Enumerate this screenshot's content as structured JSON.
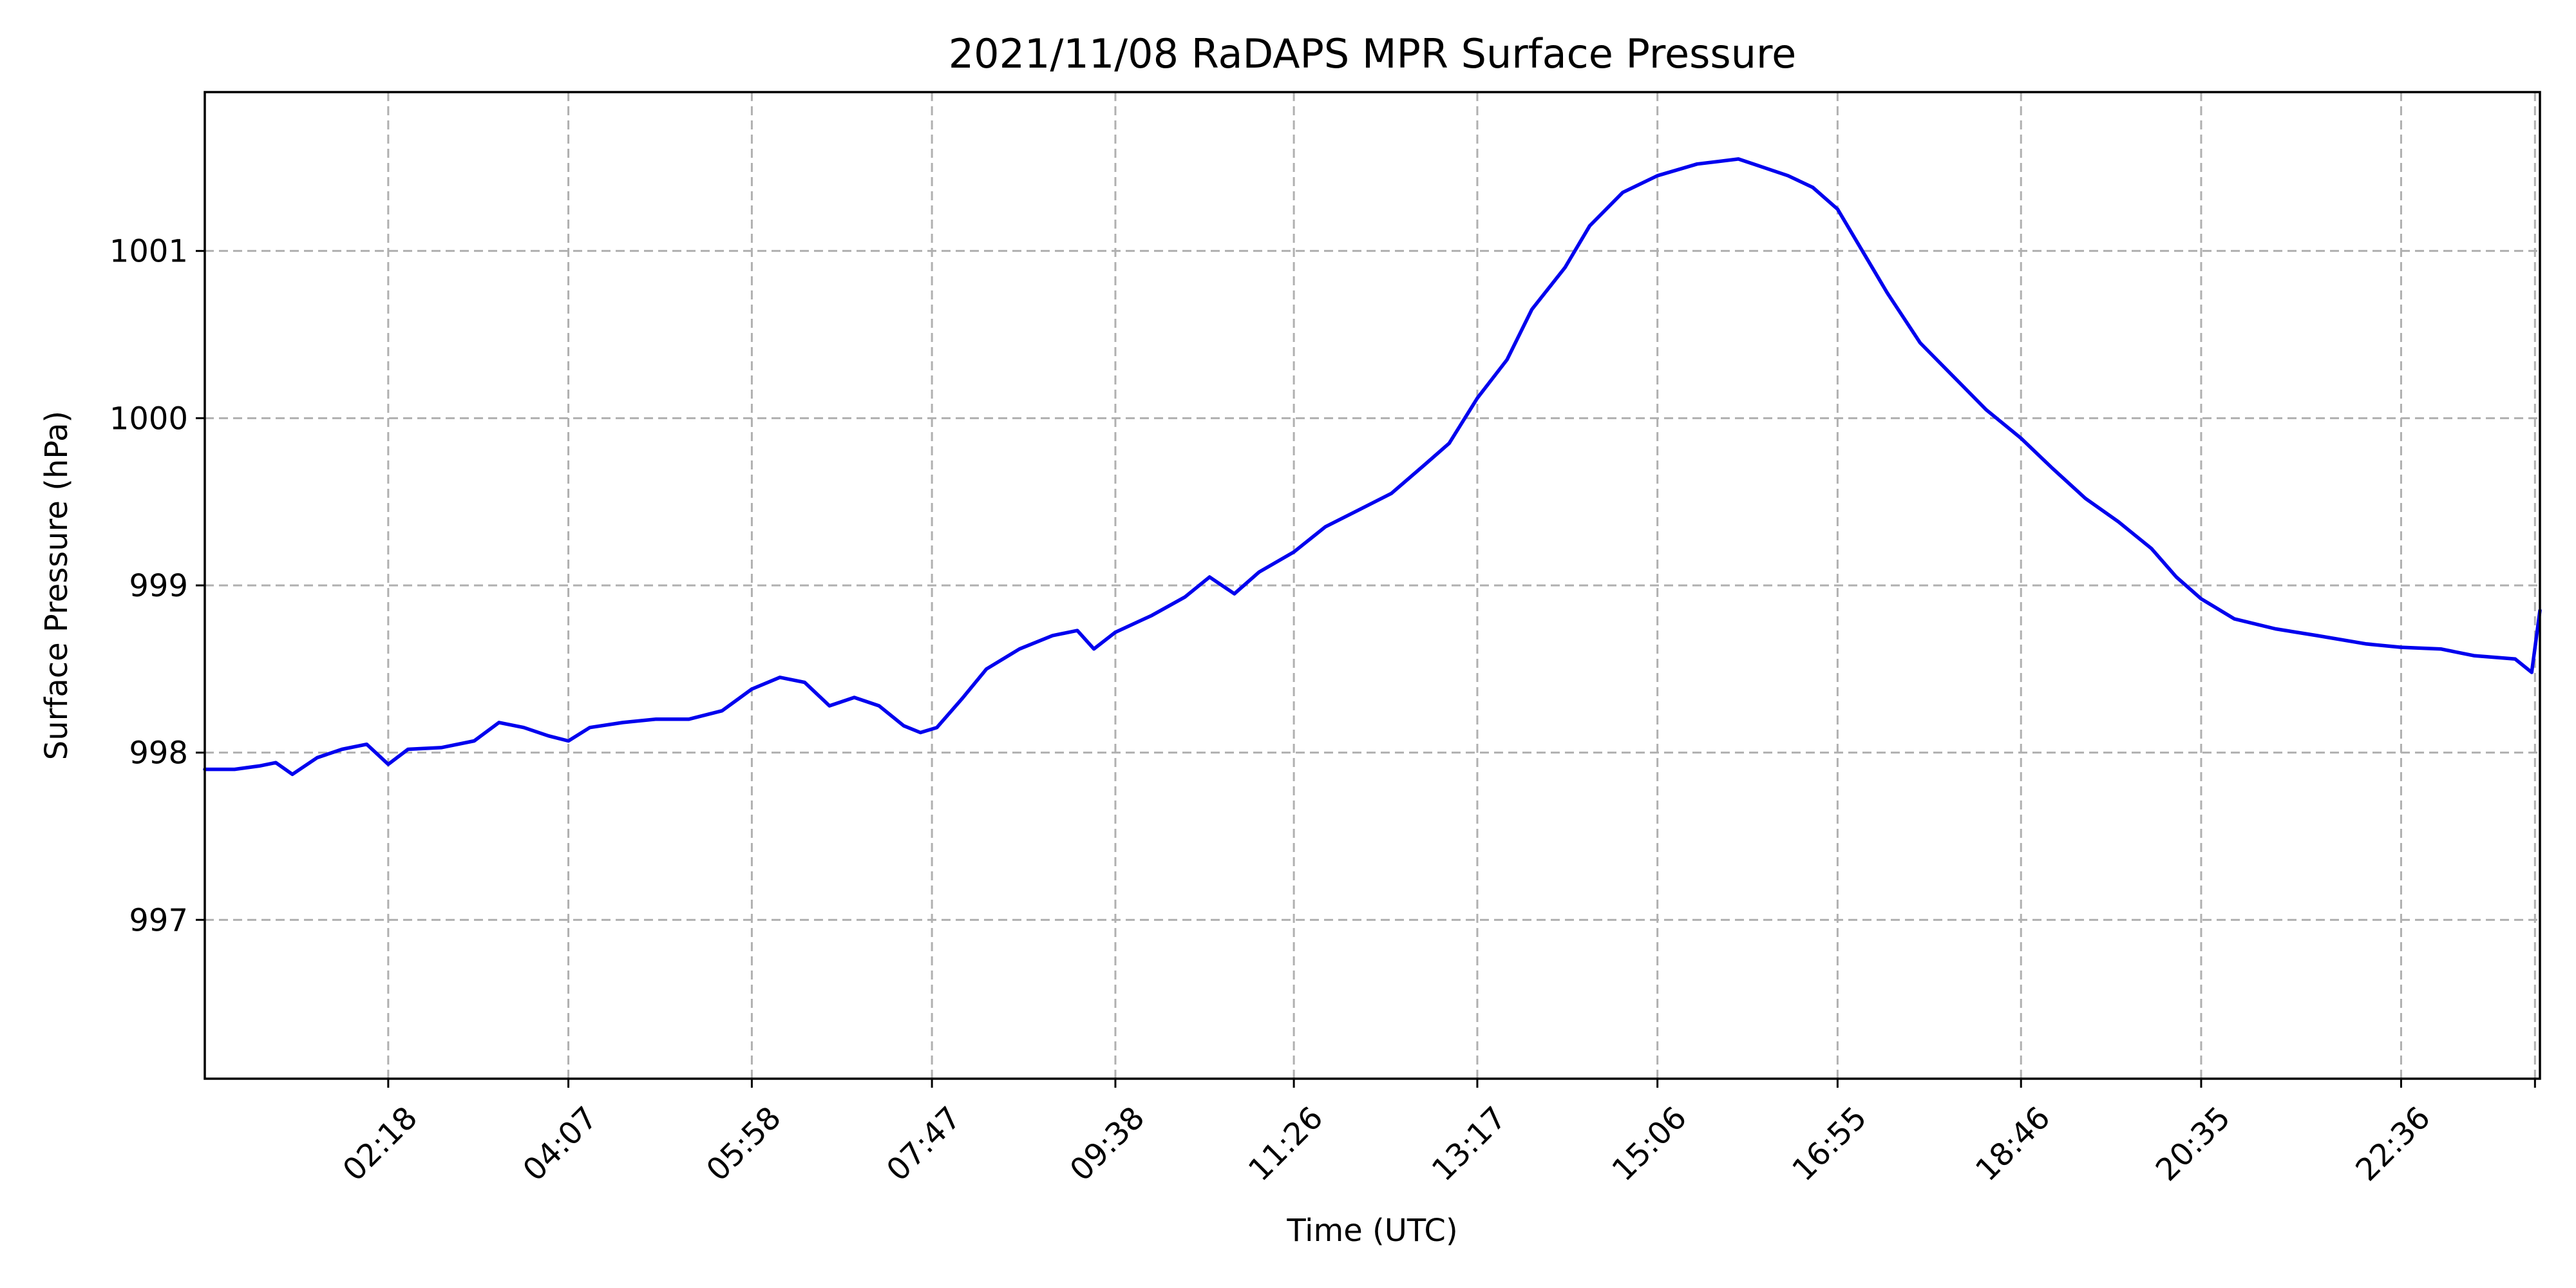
{
  "chart_data": {
    "type": "line",
    "title": "2021/11/08 RaDAPS MPR Surface Pressure",
    "xlabel": "Time (UTC)",
    "ylabel": "Surface Pressure (hPa)",
    "x_tick_labels": [
      "02:18",
      "04:07",
      "05:58",
      "07:47",
      "09:38",
      "11:26",
      "13:17",
      "15:06",
      "16:55",
      "18:46",
      "20:35",
      "22:36"
    ],
    "y_ticks": [
      997,
      998,
      999,
      1000,
      1001
    ],
    "ylim": [
      996.05,
      1001.95
    ],
    "xlim": [
      "00:27",
      "24:00"
    ],
    "grid": true,
    "colors": {
      "line": "#0000ee",
      "grid": "#b0b0b0"
    },
    "series": [
      {
        "points": [
          [
            "00:27",
            997.9
          ],
          [
            "00:45",
            997.9
          ],
          [
            "01:00",
            997.92
          ],
          [
            "01:10",
            997.94
          ],
          [
            "01:20",
            997.87
          ],
          [
            "01:35",
            997.97
          ],
          [
            "01:50",
            998.02
          ],
          [
            "02:05",
            998.05
          ],
          [
            "02:18",
            997.93
          ],
          [
            "02:30",
            998.02
          ],
          [
            "02:50",
            998.03
          ],
          [
            "03:10",
            998.07
          ],
          [
            "03:25",
            998.18
          ],
          [
            "03:40",
            998.15
          ],
          [
            "03:55",
            998.1
          ],
          [
            "04:07",
            998.07
          ],
          [
            "04:20",
            998.15
          ],
          [
            "04:40",
            998.18
          ],
          [
            "05:00",
            998.2
          ],
          [
            "05:20",
            998.2
          ],
          [
            "05:40",
            998.25
          ],
          [
            "05:58",
            998.38
          ],
          [
            "06:15",
            998.45
          ],
          [
            "06:30",
            998.42
          ],
          [
            "06:45",
            998.28
          ],
          [
            "07:00",
            998.33
          ],
          [
            "07:15",
            998.28
          ],
          [
            "07:30",
            998.16
          ],
          [
            "07:40",
            998.12
          ],
          [
            "07:50",
            998.15
          ],
          [
            "08:05",
            998.32
          ],
          [
            "08:20",
            998.5
          ],
          [
            "08:40",
            998.62
          ],
          [
            "09:00",
            998.7
          ],
          [
            "09:15",
            998.73
          ],
          [
            "09:25",
            998.62
          ],
          [
            "09:38",
            998.72
          ],
          [
            "10:00",
            998.82
          ],
          [
            "10:20",
            998.93
          ],
          [
            "10:35",
            999.05
          ],
          [
            "10:50",
            998.95
          ],
          [
            "11:05",
            999.08
          ],
          [
            "11:26",
            999.2
          ],
          [
            "11:45",
            999.35
          ],
          [
            "12:05",
            999.45
          ],
          [
            "12:25",
            999.55
          ],
          [
            "12:45",
            999.72
          ],
          [
            "13:00",
            999.85
          ],
          [
            "13:17",
            1000.12
          ],
          [
            "13:35",
            1000.35
          ],
          [
            "13:50",
            1000.65
          ],
          [
            "14:10",
            1000.9
          ],
          [
            "14:25",
            1001.15
          ],
          [
            "14:45",
            1001.35
          ],
          [
            "15:06",
            1001.45
          ],
          [
            "15:30",
            1001.52
          ],
          [
            "15:55",
            1001.55
          ],
          [
            "16:10",
            1001.5
          ],
          [
            "16:25",
            1001.45
          ],
          [
            "16:40",
            1001.38
          ],
          [
            "16:55",
            1001.25
          ],
          [
            "17:10",
            1001.0
          ],
          [
            "17:25",
            1000.75
          ],
          [
            "17:45",
            1000.45
          ],
          [
            "18:05",
            1000.25
          ],
          [
            "18:25",
            1000.05
          ],
          [
            "18:46",
            999.88
          ],
          [
            "19:05",
            999.7
          ],
          [
            "19:25",
            999.52
          ],
          [
            "19:45",
            999.38
          ],
          [
            "20:05",
            999.22
          ],
          [
            "20:20",
            999.05
          ],
          [
            "20:35",
            998.92
          ],
          [
            "20:55",
            998.8
          ],
          [
            "21:20",
            998.74
          ],
          [
            "21:45",
            998.7
          ],
          [
            "22:15",
            998.65
          ],
          [
            "22:36",
            998.63
          ],
          [
            "23:00",
            998.62
          ],
          [
            "23:20",
            998.58
          ],
          [
            "23:45",
            998.56
          ],
          [
            "23:55",
            998.48
          ],
          [
            "24:00",
            998.85
          ]
        ]
      }
    ]
  }
}
